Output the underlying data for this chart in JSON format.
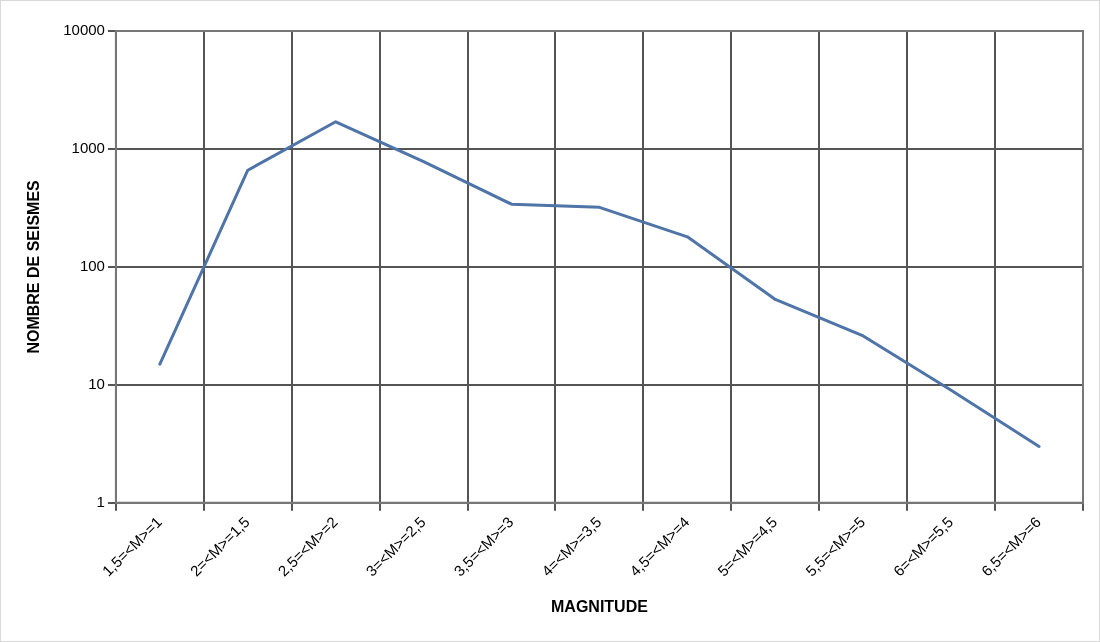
{
  "chart_data": {
    "type": "line",
    "xlabel": "MAGNITUDE",
    "ylabel": "NOMBRE DE SEISMES",
    "categories": [
      "1,5=<M>=1",
      "2=<M>=1,5",
      "2,5=<M>=2",
      "3=<M>=2,5",
      "3,5=<M>=3",
      "4=<M>=3,5",
      "4,5=<M>=4",
      "5=<M>=4,5",
      "5,5=<M>=5",
      "6=<M>=5,5",
      "6,5=<M>=6"
    ],
    "series": [
      {
        "color": "#4f74a8",
        "values": [
          15,
          660,
          1700,
          780,
          340,
          320,
          180,
          53,
          26,
          9,
          3
        ]
      }
    ],
    "log": true,
    "ylim": [
      1,
      10000
    ],
    "yticks": [
      1,
      10,
      100,
      1000,
      10000
    ],
    "grid": true,
    "legend": false,
    "marker": "none",
    "line_style": "solid"
  }
}
